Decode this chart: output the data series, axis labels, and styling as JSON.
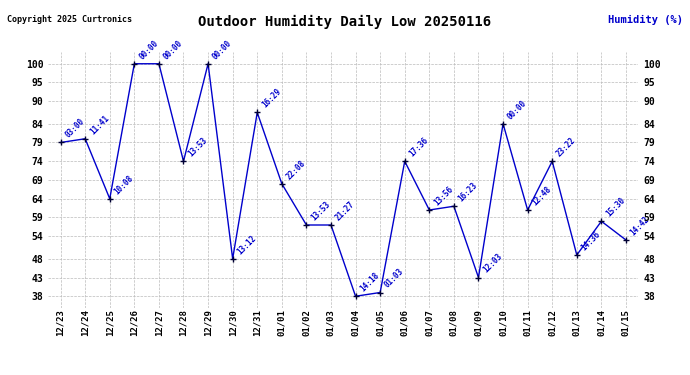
{
  "title": "Outdoor Humidity Daily Low 20250116",
  "ylabel": "Humidity (%)",
  "copyright": "Copyright 2025 Curtronics",
  "x_labels": [
    "12/23",
    "12/24",
    "12/25",
    "12/26",
    "12/27",
    "12/28",
    "12/29",
    "12/30",
    "12/31",
    "01/01",
    "01/02",
    "01/03",
    "01/04",
    "01/05",
    "01/06",
    "01/07",
    "01/08",
    "01/09",
    "01/10",
    "01/11",
    "01/12",
    "01/13",
    "01/14",
    "01/15"
  ],
  "y_values": [
    79,
    80,
    64,
    100,
    100,
    74,
    100,
    48,
    87,
    68,
    57,
    57,
    38,
    39,
    74,
    61,
    62,
    43,
    84,
    61,
    74,
    49,
    58,
    53
  ],
  "point_labels": [
    "03:00",
    "11:41",
    "10:08",
    "00:00",
    "00:00",
    "13:53",
    "00:00",
    "13:12",
    "16:29",
    "22:08",
    "13:53",
    "21:27",
    "14:18",
    "01:03",
    "17:36",
    "13:56",
    "16:23",
    "12:03",
    "00:00",
    "12:48",
    "23:22",
    "14:36",
    "15:30",
    "14:42"
  ],
  "line_color": "#0000cc",
  "marker_color": "#000033",
  "label_color": "#0000cc",
  "title_color": "#000000",
  "ylabel_color": "#0000cc",
  "copyright_color": "#000000",
  "background_color": "#ffffff",
  "grid_color": "#bbbbbb",
  "ylim": [
    35,
    103
  ],
  "yticks": [
    38,
    43,
    48,
    54,
    59,
    64,
    69,
    74,
    79,
    84,
    90,
    95,
    100
  ]
}
